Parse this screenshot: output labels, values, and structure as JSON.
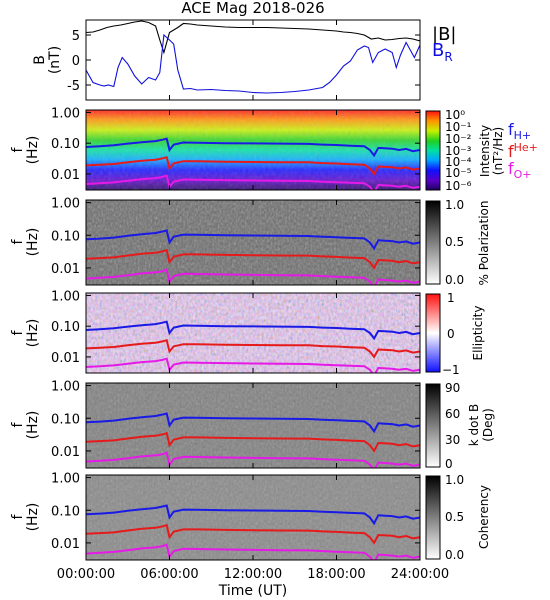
{
  "title": "ACE Mag 2018-026",
  "x_axis": {
    "label": "Time (UT)",
    "ticks": [
      "00:00:00",
      "06:00:00",
      "12:00:00",
      "18:00:00",
      "24:00:00"
    ],
    "tick_hours": [
      0,
      6,
      12,
      18,
      24
    ]
  },
  "colors": {
    "B_total": "#000000",
    "B_R": "#1010dd",
    "f_H": "#1a1ae6",
    "f_He": "#e61a1a",
    "f_O": "#e61ae6"
  },
  "legend": {
    "B_total": "|B|",
    "B_R": "B",
    "B_R_sub": "R",
    "f_H": "f",
    "f_H_sub": "H+",
    "f_He": "f",
    "f_He_sub": "He+",
    "f_O": "f",
    "f_O_sub": "O+"
  },
  "panels": {
    "bfield": {
      "ylabel": "B",
      "yunit": "(nT)",
      "yticks": [
        "5",
        "0",
        "-5"
      ]
    },
    "freq": {
      "ylabel": "f",
      "yunit": "(Hz)",
      "yticks": [
        "1.00",
        "0.10",
        "0.01"
      ]
    },
    "intensity": {
      "colorbar_label": "Intensity",
      "colorbar_unit": "(nT²/Hz)",
      "colorbar_ticks": [
        "10⁰",
        "10⁻¹",
        "10⁻²",
        "10⁻³",
        "10⁻⁴",
        "10⁻⁵",
        "10⁻⁶"
      ]
    },
    "polarization": {
      "colorbar_label": "% Polarization",
      "colorbar_ticks": [
        "1.0",
        "0.5",
        "0.0"
      ]
    },
    "ellipticity": {
      "colorbar_label": "Ellipticity",
      "colorbar_ticks": [
        "1",
        "0",
        "−1"
      ]
    },
    "kdotb": {
      "colorbar_label": "k dot B",
      "colorbar_unit": "(Deg)",
      "colorbar_ticks": [
        "90",
        "60",
        "30",
        "0"
      ]
    },
    "coherency": {
      "colorbar_label": "Coherency",
      "colorbar_ticks": [
        "1.0",
        "0.5",
        "0.0"
      ]
    }
  },
  "chart_data": [
    {
      "type": "line",
      "panel": "magnetic-field",
      "x_unit": "hour UT",
      "ylim": [
        -8,
        8
      ],
      "series": [
        {
          "name": "|B|",
          "x": [
            0,
            0.5,
            1,
            1.5,
            2,
            2.5,
            3,
            3.5,
            4,
            4.5,
            5,
            5.3,
            5.6,
            6,
            6.3,
            6.6,
            7,
            7.5,
            8,
            9,
            10,
            11,
            12,
            13,
            14,
            15,
            16,
            17,
            18,
            18.5,
            19,
            19.5,
            20,
            20.5,
            21,
            21.5,
            22,
            22.5,
            23,
            23.5,
            24
          ],
          "y": [
            5.5,
            5.6,
            6.0,
            6.5,
            6.8,
            7.0,
            7.3,
            7.6,
            7.8,
            7.5,
            6.8,
            4.0,
            1.5,
            5.5,
            6.0,
            6.5,
            7.3,
            7.2,
            7.0,
            6.8,
            6.6,
            6.5,
            6.5,
            6.5,
            6.4,
            6.3,
            6.2,
            6.0,
            5.8,
            5.6,
            5.5,
            5.3,
            5.0,
            4.2,
            4.4,
            4.0,
            4.1,
            4.3,
            4.4,
            4.2,
            3.8
          ]
        },
        {
          "name": "B_R",
          "x": [
            0,
            0.5,
            1,
            1.3,
            1.6,
            2,
            2.3,
            2.6,
            3,
            3.5,
            4,
            4.5,
            5,
            5.3,
            5.6,
            6,
            6.3,
            6.6,
            7,
            7.5,
            8,
            9,
            10,
            11,
            12,
            13,
            14,
            15,
            16,
            17,
            17.5,
            18,
            18.5,
            19,
            19.5,
            20,
            20.3,
            20.6,
            21,
            21.5,
            22,
            22.3,
            22.6,
            23,
            23.3,
            23.6,
            24
          ],
          "y": [
            -2.0,
            -4.5,
            -5.0,
            -5.2,
            -5.0,
            -5.3,
            -1.5,
            0.5,
            -0.8,
            -3.2,
            -4.8,
            -3.5,
            -4.0,
            -2.5,
            5.0,
            4.0,
            3.2,
            -2.0,
            -5.8,
            -5.7,
            -6.0,
            -5.9,
            -6.1,
            -6.2,
            -6.5,
            -6.6,
            -6.5,
            -6.3,
            -6.0,
            -5.5,
            -4.5,
            -3.0,
            -1.2,
            -0.2,
            2.0,
            2.8,
            2.5,
            -0.5,
            1.5,
            2.2,
            1.5,
            -1.5,
            1.0,
            3.5,
            2.0,
            0.5,
            3.0
          ]
        }
      ]
    },
    {
      "type": "line",
      "panel": "ion-gyrofrequencies",
      "note_on_use": "overlaid on all five spectrogram panels",
      "x_unit": "hour UT",
      "y_unit": "Hz",
      "y_scale": "log",
      "ylim": [
        0.003,
        1.2
      ],
      "series": [
        {
          "name": "f_H+",
          "x": [
            0,
            1,
            2,
            3,
            4,
            5,
            5.5,
            5.8,
            6,
            6.3,
            7,
            8,
            10,
            12,
            14,
            16,
            17,
            18,
            19,
            20,
            20.4,
            20.7,
            21,
            22,
            22.5,
            23,
            23.5,
            24
          ],
          "y": [
            0.075,
            0.079,
            0.085,
            0.097,
            0.108,
            0.117,
            0.13,
            0.14,
            0.06,
            0.09,
            0.105,
            0.104,
            0.1,
            0.098,
            0.097,
            0.095,
            0.09,
            0.087,
            0.083,
            0.08,
            0.06,
            0.04,
            0.07,
            0.066,
            0.06,
            0.065,
            0.055,
            0.06
          ]
        },
        {
          "name": "f_He+",
          "x": [
            0,
            1,
            2,
            3,
            4,
            5,
            5.5,
            5.8,
            6,
            6.3,
            7,
            8,
            10,
            12,
            14,
            16,
            17,
            18,
            19,
            20,
            20.4,
            20.7,
            21,
            22,
            22.5,
            23,
            23.5,
            24
          ],
          "y": [
            0.019,
            0.02,
            0.021,
            0.024,
            0.027,
            0.029,
            0.032,
            0.035,
            0.015,
            0.022,
            0.026,
            0.026,
            0.025,
            0.0245,
            0.024,
            0.0238,
            0.0225,
            0.0218,
            0.0207,
            0.02,
            0.015,
            0.01,
            0.0175,
            0.0165,
            0.015,
            0.0163,
            0.0138,
            0.015
          ]
        },
        {
          "name": "f_O+",
          "x": [
            0,
            1,
            2,
            3,
            4,
            5,
            5.5,
            5.8,
            6,
            6.3,
            7,
            8,
            10,
            12,
            14,
            16,
            17,
            18,
            19,
            20,
            20.4,
            20.7,
            21,
            22,
            22.5,
            23,
            23.5,
            24
          ],
          "y": [
            0.0047,
            0.005,
            0.0053,
            0.006,
            0.0068,
            0.0073,
            0.008,
            0.0088,
            0.0038,
            0.0056,
            0.0066,
            0.0065,
            0.0063,
            0.0061,
            0.006,
            0.0059,
            0.0056,
            0.0054,
            0.0052,
            0.005,
            0.0038,
            0.0025,
            0.0044,
            0.0041,
            0.0038,
            0.0041,
            0.0035,
            0.0038
          ]
        }
      ]
    },
    {
      "type": "heatmap",
      "panel": "intensity",
      "colorscale": "rainbow (purple = 1e-6, red = 1e0)",
      "value_range": [
        1e-06,
        1
      ],
      "value_scale": "log"
    },
    {
      "type": "heatmap",
      "panel": "polarization",
      "colorscale": "grayscale (white = 0.0, black = 1.0)",
      "value_range": [
        0,
        1
      ]
    },
    {
      "type": "heatmap",
      "panel": "ellipticity",
      "colorscale": "blue-white-red",
      "value_range": [
        -1,
        1
      ]
    },
    {
      "type": "heatmap",
      "panel": "kdotb",
      "colorscale": "grayscale (white = 0, black = 90)",
      "value_range": [
        0,
        90
      ]
    },
    {
      "type": "heatmap",
      "panel": "coherency",
      "colorscale": "grayscale (white = 0.0, black = 1.0)",
      "value_range": [
        0,
        1
      ]
    }
  ]
}
